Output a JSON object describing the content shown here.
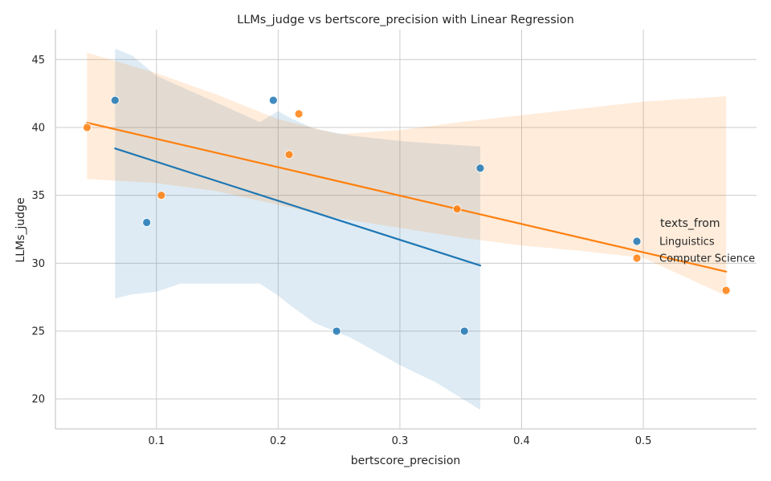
{
  "chart_data": {
    "type": "scatter",
    "title": "LLMs_judge vs bertscore_precision with Linear Regression",
    "xlabel": "bertscore_precision",
    "ylabel": "LLMs_judge",
    "xlim": [
      0.017,
      0.593
    ],
    "ylim": [
      17.8,
      47.2
    ],
    "xticks": [
      0.1,
      0.2,
      0.3,
      0.4,
      0.5
    ],
    "xtick_labels": [
      "0.1",
      "0.2",
      "0.3",
      "0.4",
      "0.5"
    ],
    "yticks": [
      20,
      25,
      30,
      35,
      40,
      45
    ],
    "ytick_labels": [
      "20",
      "25",
      "30",
      "35",
      "40",
      "45"
    ],
    "grid": true,
    "legend": {
      "title": "texts_from",
      "placement": "right"
    },
    "series": [
      {
        "name": "Linguistics",
        "color": "#1f77b4",
        "points": [
          {
            "x": 0.066,
            "y": 42
          },
          {
            "x": 0.092,
            "y": 33
          },
          {
            "x": 0.196,
            "y": 42
          },
          {
            "x": 0.248,
            "y": 25
          },
          {
            "x": 0.353,
            "y": 25
          },
          {
            "x": 0.366,
            "y": 37
          }
        ],
        "regression": {
          "x": [
            0.066,
            0.366
          ],
          "y": [
            38.45,
            29.83
          ]
        },
        "ci_band": {
          "x": [
            0.066,
            0.08,
            0.1,
            0.12,
            0.15,
            0.185,
            0.2,
            0.21,
            0.23,
            0.26,
            0.28,
            0.3,
            0.33,
            0.366
          ],
          "upper": [
            45.8,
            45.3,
            43.8,
            43.0,
            41.8,
            40.4,
            41.2,
            40.7,
            39.9,
            39.4,
            39.2,
            39.0,
            38.8,
            38.6
          ],
          "lower": [
            27.4,
            27.7,
            27.9,
            28.5,
            28.5,
            28.5,
            27.6,
            26.9,
            25.6,
            24.5,
            23.5,
            22.5,
            21.2,
            19.2
          ]
        }
      },
      {
        "name": "Computer Science",
        "color": "#ff7f0e",
        "points": [
          {
            "x": 0.043,
            "y": 40
          },
          {
            "x": 0.104,
            "y": 35
          },
          {
            "x": 0.209,
            "y": 38
          },
          {
            "x": 0.217,
            "y": 41
          },
          {
            "x": 0.347,
            "y": 34
          },
          {
            "x": 0.568,
            "y": 28
          }
        ],
        "regression": {
          "x": [
            0.043,
            0.568
          ],
          "y": [
            40.35,
            29.38
          ]
        },
        "ci_band": {
          "x": [
            0.043,
            0.1,
            0.15,
            0.2,
            0.25,
            0.3,
            0.35,
            0.4,
            0.45,
            0.5,
            0.568
          ],
          "upper": [
            45.5,
            44.0,
            42.4,
            40.6,
            39.5,
            39.8,
            40.4,
            40.9,
            41.4,
            41.9,
            42.3
          ],
          "lower": [
            36.2,
            35.9,
            35.3,
            34.3,
            33.3,
            32.6,
            31.9,
            31.3,
            30.9,
            30.4,
            27.6
          ]
        }
      }
    ]
  }
}
